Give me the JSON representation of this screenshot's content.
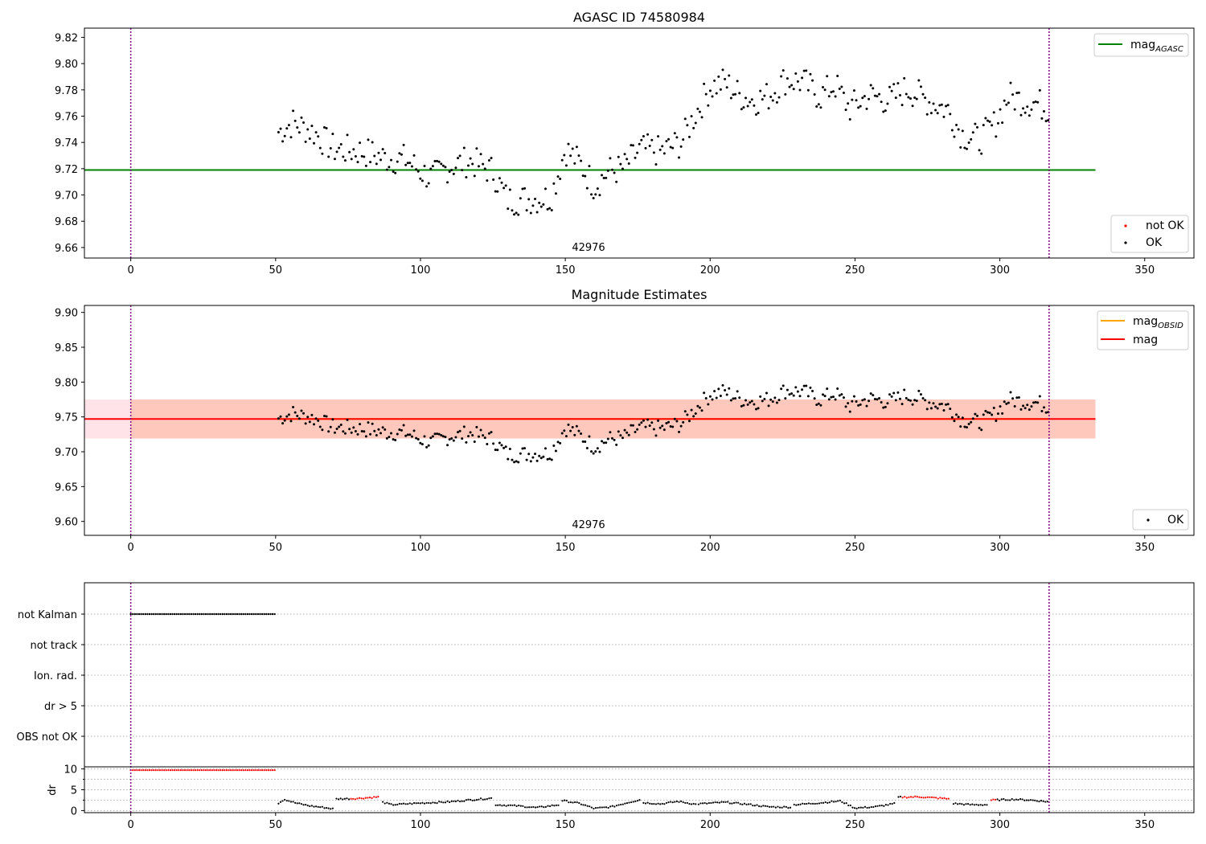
{
  "figure": {
    "x_tick_labels": [
      "0",
      "50",
      "100",
      "150",
      "200",
      "250",
      "300",
      "350"
    ],
    "vertical_markers_x": [
      0,
      317
    ],
    "marker_color": "#800080"
  },
  "chart_data": [
    {
      "type": "scatter",
      "title": "AGASC ID 74580984",
      "annotation": "42976",
      "xlim": [
        -16,
        367
      ],
      "ylim": [
        9.652,
        9.827
      ],
      "y_ticks": [
        9.66,
        9.68,
        9.7,
        9.72,
        9.74,
        9.76,
        9.78,
        9.8,
        9.82
      ],
      "reference_line": {
        "name": "mag",
        "subscript": "AGASC",
        "value": 9.719,
        "x_range": [
          -16,
          333
        ],
        "color": "#008000"
      },
      "legend_scatter": [
        {
          "label": "not OK",
          "color": "#ff0000"
        },
        {
          "label": "OK",
          "color": "#000000"
        }
      ],
      "series": [
        {
          "name": "OK",
          "color": "#000000",
          "x_start": 51,
          "x_end": 317,
          "y_anchors": [
            [
              51,
              9.748
            ],
            [
              56,
              9.755
            ],
            [
              63,
              9.748
            ],
            [
              70,
              9.735
            ],
            [
              80,
              9.733
            ],
            [
              88,
              9.728
            ],
            [
              95,
              9.727
            ],
            [
              100,
              9.718
            ],
            [
              104,
              9.713
            ],
            [
              110,
              9.722
            ],
            [
              117,
              9.726
            ],
            [
              125,
              9.718
            ],
            [
              130,
              9.696
            ],
            [
              138,
              9.697
            ],
            [
              145,
              9.698
            ],
            [
              150,
              9.735
            ],
            [
              155,
              9.724
            ],
            [
              160,
              9.707
            ],
            [
              165,
              9.718
            ],
            [
              170,
              9.72
            ],
            [
              176,
              9.735
            ],
            [
              183,
              9.733
            ],
            [
              190,
              9.74
            ],
            [
              195,
              9.762
            ],
            [
              200,
              9.782
            ],
            [
              205,
              9.786
            ],
            [
              210,
              9.776
            ],
            [
              215,
              9.772
            ],
            [
              220,
              9.775
            ],
            [
              226,
              9.788
            ],
            [
              232,
              9.786
            ],
            [
              238,
              9.775
            ],
            [
              243,
              9.784
            ],
            [
              248,
              9.766
            ],
            [
              255,
              9.776
            ],
            [
              262,
              9.772
            ],
            [
              268,
              9.781
            ],
            [
              275,
              9.772
            ],
            [
              282,
              9.765
            ],
            [
              287,
              9.746
            ],
            [
              293,
              9.742
            ],
            [
              298,
              9.753
            ],
            [
              303,
              9.775
            ],
            [
              308,
              9.772
            ],
            [
              313,
              9.77
            ],
            [
              317,
              9.765
            ]
          ]
        }
      ]
    },
    {
      "type": "scatter",
      "title": "Magnitude Estimates",
      "annotation": "42976",
      "xlim": [
        -16,
        367
      ],
      "ylim": [
        9.58,
        9.91
      ],
      "y_ticks": [
        9.6,
        9.65,
        9.7,
        9.75,
        9.8,
        9.85,
        9.9
      ],
      "lines": [
        {
          "name": "mag",
          "subscript": "OBSID",
          "value": 9.747,
          "x_range": [
            51,
            317
          ],
          "color": "#ffa500"
        },
        {
          "name": "mag",
          "subscript": "",
          "value": 9.747,
          "x_range": [
            -16,
            333
          ],
          "color": "#ff0000"
        }
      ],
      "bands": [
        {
          "range": [
            9.719,
            9.775
          ],
          "x_range": [
            -16,
            333
          ],
          "color": "#ffc0cb",
          "alpha": 0.45
        },
        {
          "range": [
            9.719,
            9.775
          ],
          "x_range": [
            0,
            333
          ],
          "color": "#ffa07a",
          "alpha": 0.4
        }
      ],
      "legend_scatter": [
        {
          "label": "OK",
          "color": "#000000"
        }
      ],
      "series": [
        {
          "name": "OK",
          "color": "#000000",
          "x_start": 51,
          "x_end": 317
        }
      ]
    },
    {
      "type": "scatter",
      "categories": [
        "not Kalman",
        "not track",
        "Ion. rad.",
        "dr > 5",
        "OBS not OK"
      ],
      "xlim": [
        -16,
        367
      ],
      "flags": [
        {
          "category": "not Kalman",
          "x_range": [
            0,
            50
          ],
          "color": "#000000"
        }
      ],
      "dr_panel": {
        "ylabel": "dr",
        "ylim": [
          -0.5,
          10.5
        ],
        "y_ticks": [
          0,
          5,
          10
        ],
        "minor_ticks": [
          2.5,
          7.5
        ],
        "segments": [
          {
            "x_range": [
              0,
              50
            ],
            "y": 9.7,
            "color": "#ff0000"
          },
          {
            "x_range": [
              51,
              70
            ],
            "anchors": [
              [
                51,
                1.8
              ],
              [
                53,
                2.7
              ],
              [
                57,
                1.8
              ],
              [
                62,
                1.1
              ],
              [
                66,
                0.8
              ],
              [
                70,
                0.4
              ]
            ],
            "color": "#000000"
          },
          {
            "x_range": [
              71,
              86
            ],
            "anchors": [
              [
                71,
                2.8
              ],
              [
                78,
                2.9
              ],
              [
                86,
                3.3
              ]
            ],
            "color": "#000000",
            "red_x_range": [
              76,
              86
            ]
          },
          {
            "x_range": [
              87,
              125
            ],
            "anchors": [
              [
                87,
                2.0
              ],
              [
                90,
                1.4
              ],
              [
                100,
                1.8
              ],
              [
                110,
                2.1
              ],
              [
                118,
                2.6
              ],
              [
                125,
                3.0
              ]
            ],
            "color": "#000000"
          },
          {
            "x_range": [
              126,
              148
            ],
            "anchors": [
              [
                126,
                1.4
              ],
              [
                134,
                1.1
              ],
              [
                140,
                0.7
              ],
              [
                148,
                1.4
              ]
            ],
            "color": "#000000"
          },
          {
            "x_range": [
              149,
              176
            ],
            "anchors": [
              [
                149,
                2.4
              ],
              [
                155,
                1.7
              ],
              [
                160,
                0.5
              ],
              [
                166,
                0.9
              ],
              [
                172,
                2.0
              ],
              [
                176,
                2.6
              ]
            ],
            "color": "#000000"
          },
          {
            "x_range": [
              177,
              195
            ],
            "anchors": [
              [
                177,
                1.9
              ],
              [
                183,
                1.6
              ],
              [
                189,
                2.2
              ],
              [
                195,
                1.5
              ]
            ],
            "color": "#000000"
          },
          {
            "x_range": [
              196,
              228
            ],
            "anchors": [
              [
                196,
                1.6
              ],
              [
                205,
                2.0
              ],
              [
                213,
                1.5
              ],
              [
                220,
                0.9
              ],
              [
                228,
                0.8
              ]
            ],
            "color": "#000000"
          },
          {
            "x_range": [
              229,
              264
            ],
            "anchors": [
              [
                229,
                1.4
              ],
              [
                237,
                1.8
              ],
              [
                245,
                2.3
              ],
              [
                250,
                0.6
              ],
              [
                257,
                0.9
              ],
              [
                264,
                1.7
              ]
            ],
            "color": "#000000"
          },
          {
            "x_range": [
              265,
              283
            ],
            "anchors": [
              [
                265,
                3.2
              ],
              [
                272,
                3.3
              ],
              [
                283,
                2.8
              ]
            ],
            "color": "#000000",
            "red_x_range": [
              266,
              283
            ]
          },
          {
            "x_range": [
              284,
              296
            ],
            "anchors": [
              [
                284,
                1.7
              ],
              [
                290,
                1.4
              ],
              [
                296,
                1.4
              ]
            ],
            "color": "#000000"
          },
          {
            "x_range": [
              297,
              317
            ],
            "anchors": [
              [
                297,
                2.5
              ],
              [
                305,
                2.7
              ],
              [
                311,
                2.5
              ],
              [
                317,
                2.1
              ]
            ],
            "color": "#000000",
            "red_x_range": [
              297,
              299
            ]
          }
        ]
      }
    }
  ]
}
